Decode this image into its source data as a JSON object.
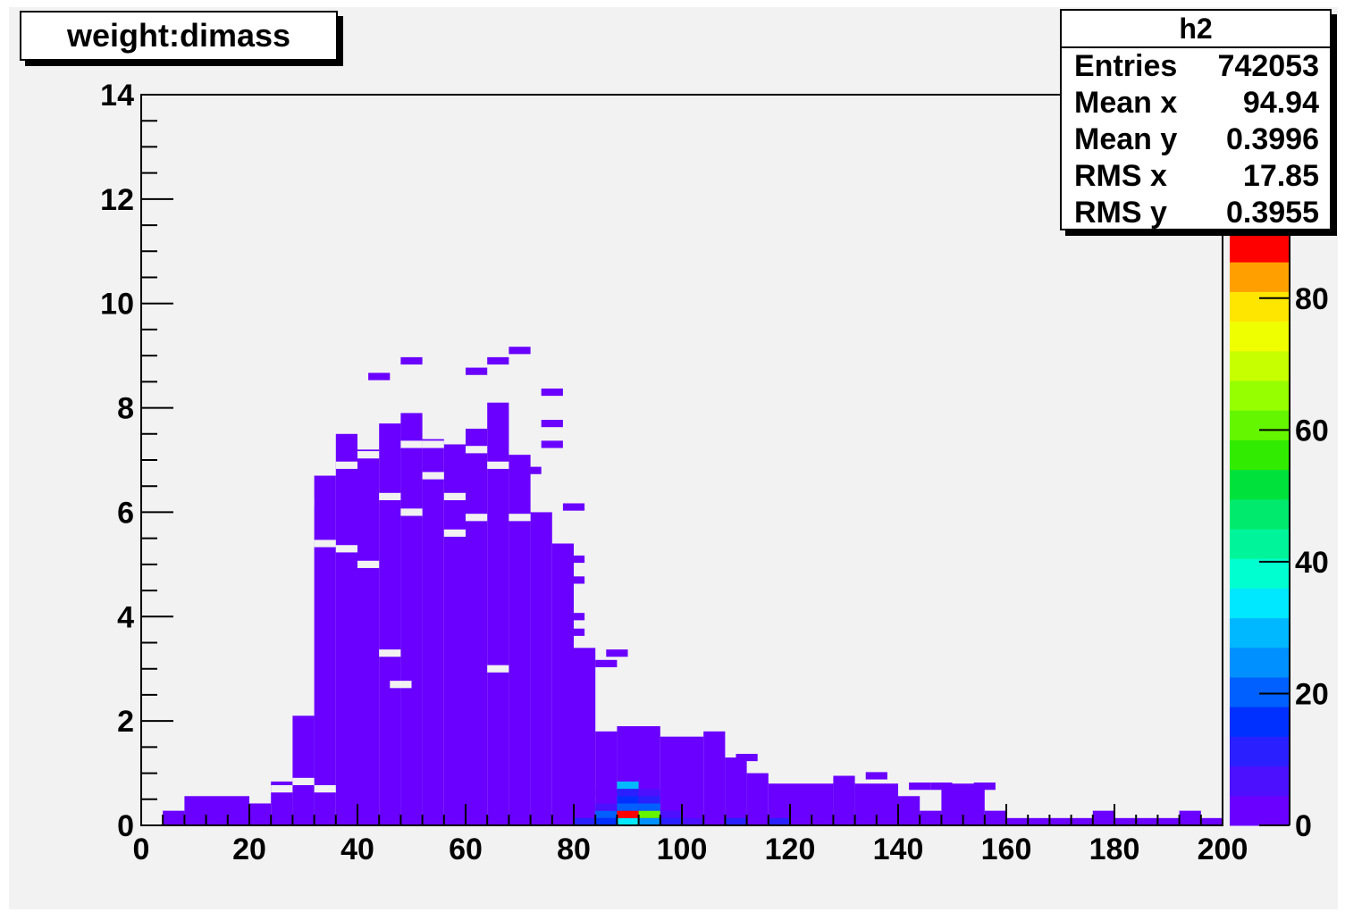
{
  "title": "weight:dimass",
  "stats": {
    "name": "h2",
    "rows": [
      {
        "label": "Entries",
        "value": "742053"
      },
      {
        "label": "Mean x",
        "value": "94.94"
      },
      {
        "label": "Mean y",
        "value": "0.3996"
      },
      {
        "label": "RMS x",
        "value": "17.85"
      },
      {
        "label": "RMS y",
        "value": "0.3955"
      }
    ]
  },
  "chart_data": {
    "type": "heatmap",
    "title": "weight:dimass",
    "xlabel": "",
    "ylabel": "",
    "xlim": [
      0,
      200
    ],
    "ylim": [
      0,
      14
    ],
    "zlim": [
      0,
      90
    ],
    "xticks": [
      0,
      20,
      40,
      60,
      80,
      100,
      120,
      140,
      160,
      180,
      200
    ],
    "yticks": [
      0,
      2,
      4,
      6,
      8,
      10,
      12,
      14
    ],
    "zticks": [
      0,
      20,
      40,
      60,
      80
    ],
    "bin_width_x": 4,
    "bin_height_y": 0.14,
    "colors": {
      "frame_bg": "#f2f2f2",
      "low_count": "#6a00ff",
      "palette": [
        "#6a00ff",
        "#4c10ff",
        "#2a20ff",
        "#0030ff",
        "#0060ff",
        "#0090ff",
        "#00b8ff",
        "#00e8ff",
        "#00ffd0",
        "#00f59a",
        "#00eb6e",
        "#00e13c",
        "#32ec00",
        "#64f500",
        "#96ff00",
        "#c8ff00",
        "#f0ff00",
        "#ffe600",
        "#ffa000",
        "#ff0000"
      ]
    },
    "bands": [
      {
        "x": [
          4,
          8
        ],
        "y": [
          0,
          0.28
        ],
        "z": 1
      },
      {
        "x": [
          8,
          20
        ],
        "y": [
          0,
          0.56
        ],
        "z": 1
      },
      {
        "x": [
          20,
          24
        ],
        "y": [
          0,
          0.42
        ],
        "z": 1
      },
      {
        "x": [
          24,
          28
        ],
        "y": [
          0,
          0.84
        ],
        "z": 1
      },
      {
        "x": [
          28,
          32
        ],
        "y": [
          0,
          2.1
        ],
        "z": 1
      },
      {
        "x": [
          32,
          36
        ],
        "y": [
          0,
          6.7
        ],
        "z": 1
      },
      {
        "x": [
          36,
          40
        ],
        "y": [
          0,
          7.5
        ],
        "z": 1
      },
      {
        "x": [
          40,
          44
        ],
        "y": [
          0,
          7.2
        ],
        "z": 1
      },
      {
        "x": [
          44,
          48
        ],
        "y": [
          0,
          7.7
        ],
        "z": 1
      },
      {
        "x": [
          48,
          52
        ],
        "y": [
          0,
          7.9
        ],
        "z": 1
      },
      {
        "x": [
          52,
          56
        ],
        "y": [
          0,
          7.4
        ],
        "z": 1
      },
      {
        "x": [
          56,
          60
        ],
        "y": [
          0,
          7.3
        ],
        "z": 1
      },
      {
        "x": [
          60,
          64
        ],
        "y": [
          0,
          7.6
        ],
        "z": 1
      },
      {
        "x": [
          64,
          68
        ],
        "y": [
          0,
          8.1
        ],
        "z": 1
      },
      {
        "x": [
          68,
          72
        ],
        "y": [
          0,
          7.1
        ],
        "z": 1
      },
      {
        "x": [
          72,
          76
        ],
        "y": [
          0,
          6.0
        ],
        "z": 1
      },
      {
        "x": [
          76,
          80
        ],
        "y": [
          0,
          5.4
        ],
        "z": 1
      },
      {
        "x": [
          80,
          84
        ],
        "y": [
          0,
          3.4
        ],
        "z": 1
      },
      {
        "x": [
          84,
          88
        ],
        "y": [
          0,
          1.8
        ],
        "z": 1
      },
      {
        "x": [
          88,
          96
        ],
        "y": [
          0,
          1.9
        ],
        "z": 1
      },
      {
        "x": [
          96,
          104
        ],
        "y": [
          0,
          1.7
        ],
        "z": 1
      },
      {
        "x": [
          104,
          108
        ],
        "y": [
          0,
          1.8
        ],
        "z": 1
      },
      {
        "x": [
          108,
          112
        ],
        "y": [
          0,
          1.3
        ],
        "z": 1
      },
      {
        "x": [
          112,
          116
        ],
        "y": [
          0,
          1.0
        ],
        "z": 1
      },
      {
        "x": [
          116,
          128
        ],
        "y": [
          0,
          0.8
        ],
        "z": 1
      },
      {
        "x": [
          128,
          132
        ],
        "y": [
          0,
          0.95
        ],
        "z": 1
      },
      {
        "x": [
          132,
          140
        ],
        "y": [
          0,
          0.8
        ],
        "z": 1
      },
      {
        "x": [
          140,
          144
        ],
        "y": [
          0,
          0.56
        ],
        "z": 1
      },
      {
        "x": [
          144,
          148
        ],
        "y": [
          0,
          0.28
        ],
        "z": 1
      },
      {
        "x": [
          148,
          156
        ],
        "y": [
          0,
          0.8
        ],
        "z": 1
      },
      {
        "x": [
          156,
          160
        ],
        "y": [
          0,
          0.28
        ],
        "z": 1
      },
      {
        "x": [
          160,
          164
        ],
        "y": [
          0,
          0.14
        ],
        "z": 1
      },
      {
        "x": [
          164,
          176
        ],
        "y": [
          0,
          0.14
        ],
        "z": 1
      },
      {
        "x": [
          176,
          180
        ],
        "y": [
          0,
          0.28
        ],
        "z": 1
      },
      {
        "x": [
          180,
          192
        ],
        "y": [
          0,
          0.14
        ],
        "z": 1
      },
      {
        "x": [
          192,
          196
        ],
        "y": [
          0,
          0.28
        ],
        "z": 1
      },
      {
        "x": [
          196,
          200
        ],
        "y": [
          0,
          0.14
        ],
        "z": 1
      }
    ],
    "bins": [
      {
        "x": 82,
        "y": 0.07,
        "z": 12
      },
      {
        "x": 86,
        "y": 0.21,
        "z": 20
      },
      {
        "x": 86,
        "y": 0.07,
        "z": 15
      },
      {
        "x": 86,
        "y": 0.35,
        "z": 8
      },
      {
        "x": 86,
        "y": 0.63,
        "z": 4
      },
      {
        "x": 90,
        "y": 0.07,
        "z": 35
      },
      {
        "x": 90,
        "y": 0.21,
        "z": 90
      },
      {
        "x": 90,
        "y": 0.35,
        "z": 20
      },
      {
        "x": 90,
        "y": 0.49,
        "z": 15
      },
      {
        "x": 90,
        "y": 0.63,
        "z": 12
      },
      {
        "x": 90,
        "y": 0.77,
        "z": 28
      },
      {
        "x": 94,
        "y": 0.07,
        "z": 25
      },
      {
        "x": 94,
        "y": 0.21,
        "z": 60
      },
      {
        "x": 94,
        "y": 0.35,
        "z": 18
      },
      {
        "x": 94,
        "y": 0.49,
        "z": 12
      },
      {
        "x": 94,
        "y": 0.63,
        "z": 8
      },
      {
        "x": 98,
        "y": 0.07,
        "z": 10
      },
      {
        "x": 98,
        "y": 0.21,
        "z": 8
      },
      {
        "x": 102,
        "y": 0.07,
        "z": 6
      },
      {
        "x": 110,
        "y": 0.07,
        "z": 12
      },
      {
        "x": 118,
        "y": 0.07,
        "z": 10
      },
      {
        "x": 122,
        "y": 0.07,
        "z": 4
      }
    ],
    "outliers": [
      {
        "x": 70,
        "y": 9.1,
        "z": 1
      },
      {
        "x": 50,
        "y": 8.9,
        "z": 1
      },
      {
        "x": 66,
        "y": 8.9,
        "z": 1
      },
      {
        "x": 62,
        "y": 8.7,
        "z": 1
      },
      {
        "x": 44,
        "y": 8.6,
        "z": 1
      },
      {
        "x": 76,
        "y": 8.3,
        "z": 1
      },
      {
        "x": 76,
        "y": 7.7,
        "z": 1
      },
      {
        "x": 76,
        "y": 7.3,
        "z": 1
      },
      {
        "x": 72,
        "y": 6.8,
        "z": 1
      },
      {
        "x": 80,
        "y": 6.1,
        "z": 1
      },
      {
        "x": 80,
        "y": 5.1,
        "z": 1
      },
      {
        "x": 80,
        "y": 4.7,
        "z": 1
      },
      {
        "x": 80,
        "y": 4.0,
        "z": 1
      },
      {
        "x": 80,
        "y": 3.7,
        "z": 1
      },
      {
        "x": 88,
        "y": 3.3,
        "z": 1
      },
      {
        "x": 86,
        "y": 3.1,
        "z": 1
      },
      {
        "x": 80,
        "y": 2.1,
        "z": 1
      },
      {
        "x": 112,
        "y": 1.3,
        "z": 1
      },
      {
        "x": 148,
        "y": 0.75,
        "z": 1
      },
      {
        "x": 156,
        "y": 0.75,
        "z": 1
      },
      {
        "x": 136,
        "y": 0.95,
        "z": 1
      },
      {
        "x": 144,
        "y": 0.75,
        "z": 1
      }
    ],
    "gaps": [
      {
        "x": 34,
        "y": 0.7
      },
      {
        "x": 30,
        "y": 0.84
      },
      {
        "x": 26,
        "y": 0.7
      },
      {
        "x": 42,
        "y": 5.0
      },
      {
        "x": 38,
        "y": 5.3
      },
      {
        "x": 58,
        "y": 5.6
      },
      {
        "x": 46,
        "y": 6.3
      },
      {
        "x": 54,
        "y": 6.7
      },
      {
        "x": 62,
        "y": 5.9
      },
      {
        "x": 50,
        "y": 6.0
      },
      {
        "x": 58,
        "y": 6.3
      },
      {
        "x": 46,
        "y": 3.3
      },
      {
        "x": 66,
        "y": 3.0
      },
      {
        "x": 48,
        "y": 2.7
      },
      {
        "x": 38,
        "y": 6.9
      },
      {
        "x": 42,
        "y": 7.1
      },
      {
        "x": 66,
        "y": 6.9
      },
      {
        "x": 70,
        "y": 5.9
      },
      {
        "x": 34,
        "y": 5.4
      },
      {
        "x": 30,
        "y": 6.2
      },
      {
        "x": 54,
        "y": 7.3
      },
      {
        "x": 50,
        "y": 7.3
      },
      {
        "x": 62,
        "y": 7.2
      }
    ]
  }
}
